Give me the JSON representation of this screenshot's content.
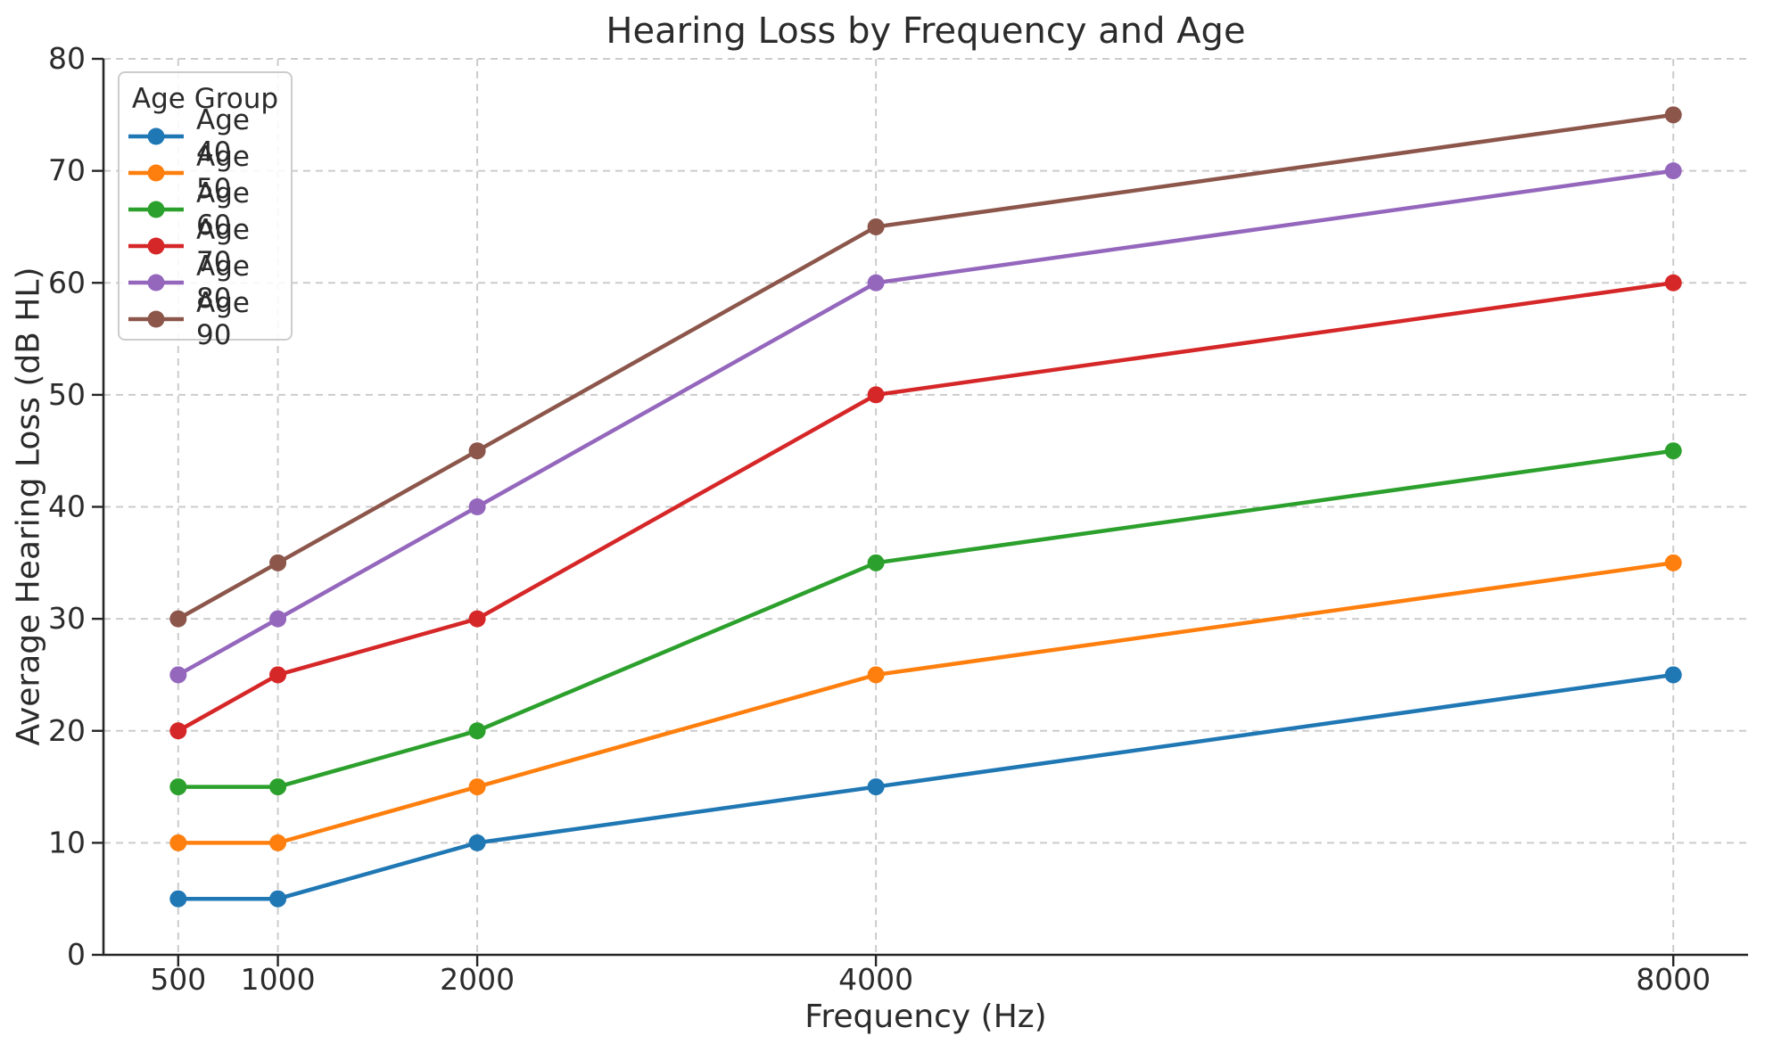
{
  "chart_data": {
    "type": "line",
    "title": "Hearing Loss by Frequency and Age",
    "xlabel": "Frequency (Hz)",
    "ylabel": "Average Hearing Loss (dB HL)",
    "x": [
      500,
      1000,
      2000,
      4000,
      8000
    ],
    "x_tick_labels": [
      "500",
      "1000",
      "2000",
      "4000",
      "8000"
    ],
    "y_ticks": [
      0,
      10,
      20,
      30,
      40,
      50,
      60,
      70,
      80
    ],
    "y_tick_labels": [
      "0",
      "10",
      "20",
      "30",
      "40",
      "50",
      "60",
      "70",
      "80"
    ],
    "xlim": [
      125,
      8375
    ],
    "ylim": [
      0,
      80
    ],
    "x_scale": "linear",
    "grid": true,
    "grid_style": "dashed",
    "marker": "circle",
    "legend": {
      "title": "Age Group",
      "position": "upper-left"
    },
    "series": [
      {
        "name": "Age 40",
        "color": "#1f77b4",
        "values": [
          5,
          5,
          10,
          15,
          25
        ]
      },
      {
        "name": "Age 50",
        "color": "#ff7f0e",
        "values": [
          10,
          10,
          15,
          25,
          35
        ]
      },
      {
        "name": "Age 60",
        "color": "#2ca02c",
        "values": [
          15,
          15,
          20,
          35,
          45
        ]
      },
      {
        "name": "Age 70",
        "color": "#d62728",
        "values": [
          20,
          25,
          30,
          50,
          60
        ]
      },
      {
        "name": "Age 80",
        "color": "#9467bd",
        "values": [
          25,
          30,
          40,
          60,
          70
        ]
      },
      {
        "name": "Age 90",
        "color": "#8c564b",
        "values": [
          30,
          35,
          45,
          65,
          75
        ]
      }
    ]
  },
  "colors": {
    "background": "#ffffff",
    "text": "#2b2b2b",
    "spine": "#262626",
    "grid": "#cccccc",
    "legend_border": "#cccccc"
  }
}
